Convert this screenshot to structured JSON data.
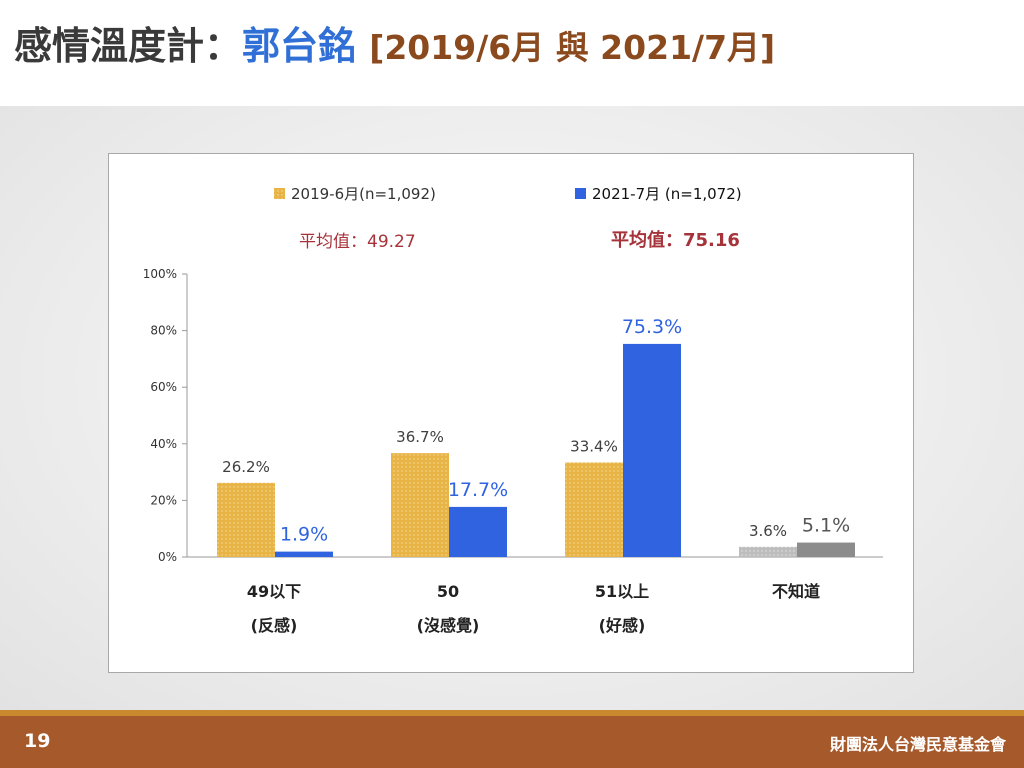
{
  "header": {
    "title_prefix": "感情溫度計：",
    "title_name": "郭台銘",
    "title_dates": "[2019/6月 與 2021/7月]"
  },
  "colors": {
    "series_2019": "#e8b446",
    "series_2021": "#2f63e0",
    "unknown_2019": "#bdbdbd",
    "unknown_2021": "#8c8c8c",
    "mean_text": "#a6333a",
    "footer": "#a65a2b"
  },
  "chart_data": {
    "type": "bar",
    "categories": [
      {
        "line1": "49以下",
        "line2": "(反感)"
      },
      {
        "line1": "50",
        "line2": "(沒感覺)"
      },
      {
        "line1": "51以上",
        "line2": "(好感)"
      },
      {
        "line1": "不知道",
        "line2": ""
      }
    ],
    "series": [
      {
        "name": "2019-6月(n=1,092)",
        "values": [
          26.2,
          36.7,
          33.4,
          3.6
        ],
        "labels": [
          "26.2%",
          "36.7%",
          "33.4%",
          "3.6%"
        ],
        "mean_label": "平均值：49.27"
      },
      {
        "name": "2021-7月 (n=1,072)",
        "values": [
          1.9,
          17.7,
          75.3,
          5.1
        ],
        "labels": [
          "1.9%",
          "17.7%",
          "75.3%",
          "5.1%"
        ],
        "mean_label": "平均值：75.16"
      }
    ],
    "y_ticks": [
      "0%",
      "20%",
      "40%",
      "60%",
      "80%",
      "100%"
    ],
    "ylim": [
      0,
      100
    ],
    "grid": false,
    "legend_position": "top"
  },
  "footer": {
    "page_number": "19",
    "organization": "財團法人台灣民意基金會"
  }
}
